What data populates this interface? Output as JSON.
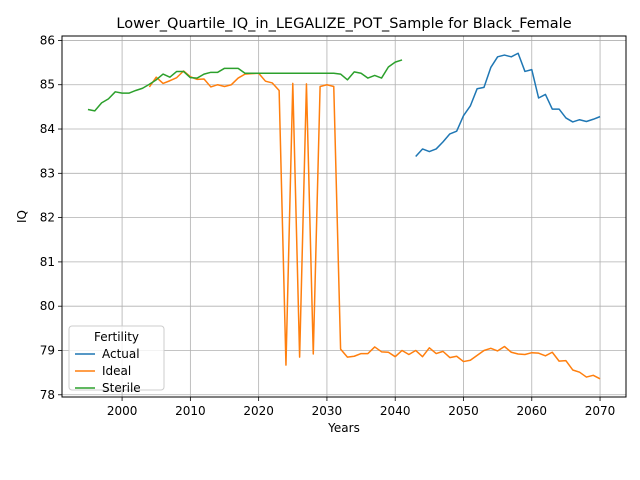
{
  "chart_data": {
    "type": "line",
    "title": "Lower_Quartile_IQ_in_LEGALIZE_POT_Sample for Black_Female",
    "xlabel": "Years",
    "ylabel": "IQ",
    "xlim": [
      1991.2,
      2073.8
    ],
    "ylim": [
      77.95,
      86.1
    ],
    "xticks": [
      2000,
      2010,
      2020,
      2030,
      2040,
      2050,
      2060,
      2070
    ],
    "yticks": [
      78,
      79,
      80,
      81,
      82,
      83,
      84,
      85,
      86
    ],
    "grid": true,
    "legend": {
      "title": "Fertility",
      "placement": "lower-left"
    },
    "series": [
      {
        "name": "Actual",
        "color": "#1f77b4",
        "x": [
          2043,
          2044,
          2045,
          2046,
          2047,
          2048,
          2049,
          2050,
          2051,
          2052,
          2053,
          2054,
          2055,
          2056,
          2057,
          2058,
          2059,
          2060,
          2061,
          2062,
          2063,
          2064,
          2065,
          2066,
          2067,
          2068,
          2069,
          2070
        ],
        "values": [
          83.38,
          83.55,
          83.49,
          83.55,
          83.71,
          83.89,
          83.95,
          84.3,
          84.52,
          84.91,
          84.94,
          85.39,
          85.63,
          85.67,
          85.63,
          85.71,
          85.3,
          85.34,
          84.7,
          84.78,
          84.45,
          84.45,
          84.25,
          84.16,
          84.21,
          84.17,
          84.22,
          84.28
        ]
      },
      {
        "name": "Ideal",
        "color": "#ff7f0e",
        "x": [
          2004,
          2005,
          2006,
          2007,
          2008,
          2009,
          2010,
          2011,
          2012,
          2013,
          2014,
          2015,
          2016,
          2017,
          2018,
          2019,
          2020,
          2021,
          2022,
          2023,
          2024,
          2025,
          2026,
          2027,
          2028,
          2029,
          2030,
          2031,
          2032,
          2033,
          2034,
          2035,
          2036,
          2037,
          2038,
          2039,
          2040,
          2041,
          2042,
          2043,
          2044,
          2045,
          2046,
          2047,
          2048,
          2049,
          2050,
          2051,
          2052,
          2053,
          2054,
          2055,
          2056,
          2057,
          2058,
          2059,
          2060,
          2061,
          2062,
          2063,
          2064,
          2065,
          2066,
          2067,
          2068,
          2069,
          2070
        ],
        "values": [
          84.95,
          85.17,
          85.03,
          85.09,
          85.16,
          85.31,
          85.18,
          85.12,
          85.13,
          84.95,
          85.0,
          84.96,
          85.0,
          85.15,
          85.24,
          85.25,
          85.26,
          85.08,
          85.04,
          84.87,
          78.67,
          85.03,
          78.85,
          85.02,
          78.92,
          84.96,
          85.0,
          84.96,
          79.03,
          78.85,
          78.87,
          78.93,
          78.93,
          79.08,
          78.97,
          78.96,
          78.86,
          79.0,
          78.91,
          79.0,
          78.86,
          79.06,
          78.93,
          78.98,
          78.84,
          78.87,
          78.75,
          78.78,
          78.89,
          79.0,
          79.05,
          78.99,
          79.09,
          78.96,
          78.92,
          78.91,
          78.95,
          78.94,
          78.88,
          78.96,
          78.76,
          78.77,
          78.56,
          78.51,
          78.4,
          78.44,
          78.36
        ]
      },
      {
        "name": "Sterile",
        "color": "#2ca02c",
        "x": [
          1995,
          1996,
          1997,
          1998,
          1999,
          2000,
          2001,
          2002,
          2003,
          2004,
          2005,
          2006,
          2007,
          2008,
          2009,
          2010,
          2011,
          2012,
          2013,
          2014,
          2015,
          2016,
          2017,
          2018,
          2019,
          2020,
          2021,
          2022,
          2023,
          2024,
          2025,
          2026,
          2027,
          2028,
          2029,
          2030,
          2031,
          2032,
          2033,
          2034,
          2035,
          2036,
          2037,
          2038,
          2039,
          2040,
          2041
        ],
        "values": [
          84.44,
          84.41,
          84.59,
          84.68,
          84.84,
          84.81,
          84.81,
          84.87,
          84.92,
          85.01,
          85.11,
          85.24,
          85.17,
          85.3,
          85.3,
          85.16,
          85.15,
          85.24,
          85.28,
          85.28,
          85.37,
          85.37,
          85.37,
          85.26,
          85.26,
          85.26,
          85.26,
          85.26,
          85.26,
          85.26,
          85.26,
          85.26,
          85.26,
          85.26,
          85.26,
          85.26,
          85.26,
          85.24,
          85.11,
          85.29,
          85.26,
          85.15,
          85.21,
          85.15,
          85.4,
          85.51,
          85.56
        ]
      }
    ]
  }
}
